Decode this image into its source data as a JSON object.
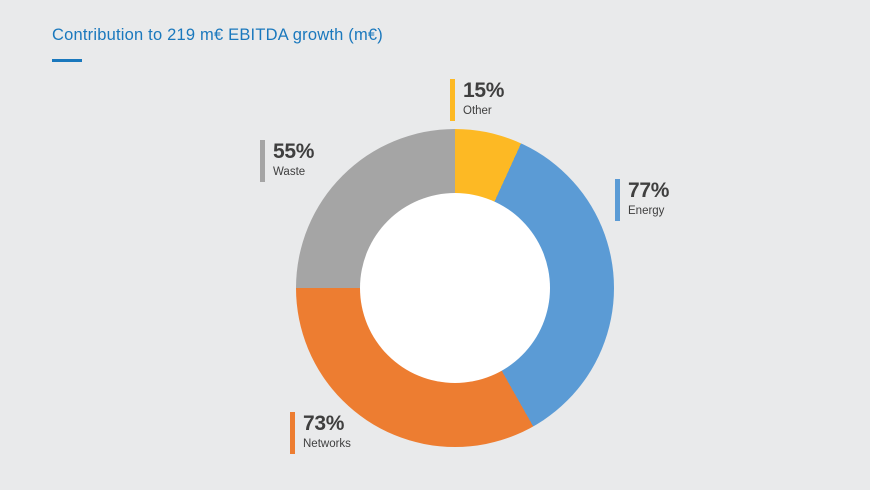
{
  "title": "Contribution to 219 m€ EBITDA growth (m€)",
  "colors": {
    "background": "#e9eaeb",
    "title_text": "#1a78bd",
    "accent_line": "#1a78bd",
    "label_text": "#3f3f3f",
    "donut_hole": "#ffffff"
  },
  "chart_data": {
    "type": "pie",
    "title": "Contribution to 219 m€ EBITDA growth (m€)",
    "donut": true,
    "start_angle_deg": 0,
    "direction": "clockwise",
    "total_label": "219 m€",
    "legend_position": "callouts",
    "segments": [
      {
        "label": "Other",
        "value": 15,
        "value_text": "15%",
        "color": "#fdb924"
      },
      {
        "label": "Energy",
        "value": 77,
        "value_text": "77%",
        "color": "#5b9bd5"
      },
      {
        "label": "Networks",
        "value": 73,
        "value_text": "73%",
        "color": "#ed7d31"
      },
      {
        "label": "Waste",
        "value": 55,
        "value_text": "55%",
        "color": "#a5a5a5"
      }
    ]
  }
}
